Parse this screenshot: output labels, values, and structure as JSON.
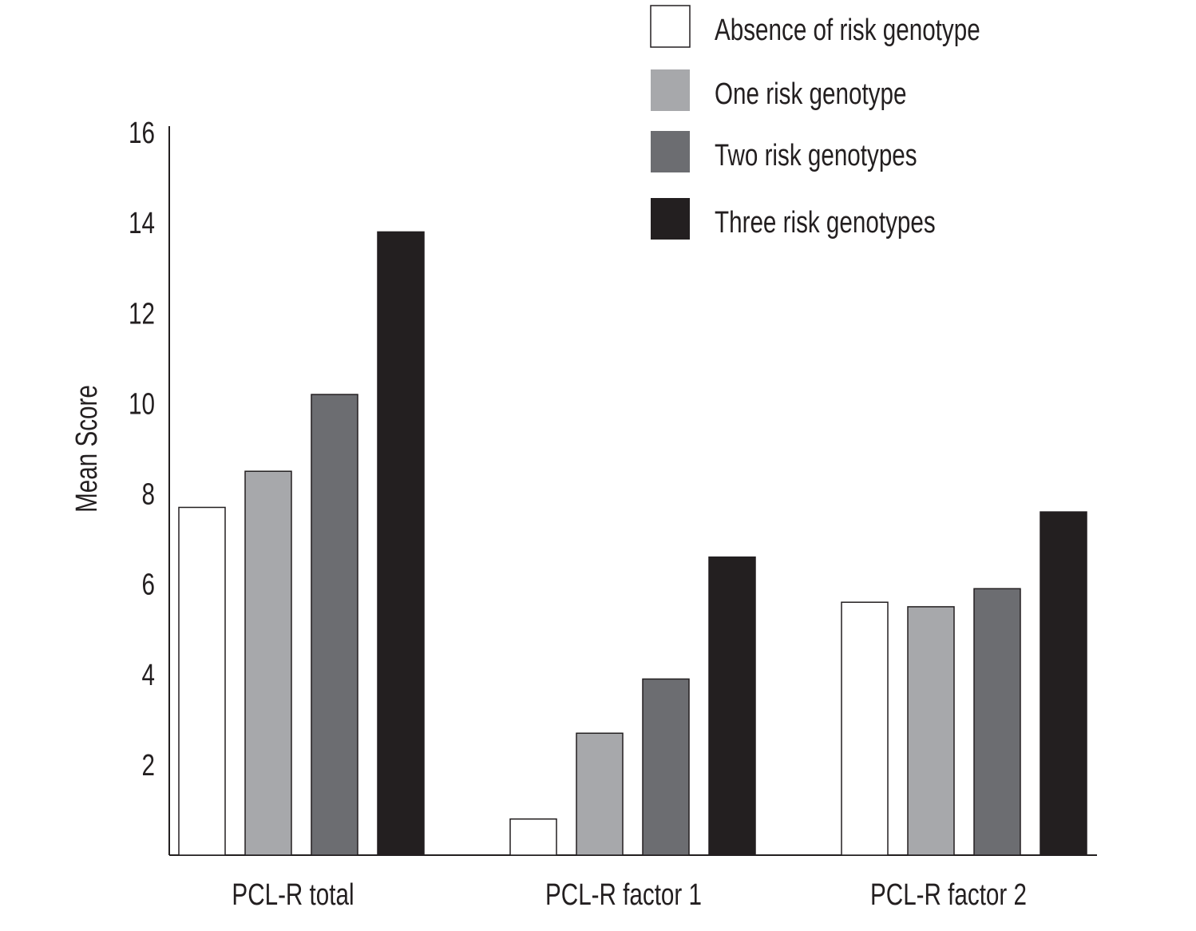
{
  "chart_data": {
    "type": "bar",
    "title": "",
    "xlabel": "",
    "ylabel": "Mean Score",
    "ylim": [
      0,
      16
    ],
    "yticks": [
      2,
      4,
      6,
      8,
      10,
      12,
      14,
      16
    ],
    "ytick_labels": [
      "2",
      "4",
      "6",
      "8",
      "10",
      "12",
      "14",
      "16"
    ],
    "categories": [
      "PCL-R total",
      "PCL-R factor 1",
      "PCL-R factor 2"
    ],
    "series": [
      {
        "name": "Absence of risk genotype",
        "color": "#ffffff",
        "values": [
          7.7,
          0.8,
          5.6
        ]
      },
      {
        "name": "One risk genotype",
        "color": "#a7a8ab",
        "values": [
          8.5,
          2.7,
          5.5
        ]
      },
      {
        "name": "Two risk genotypes",
        "color": "#6c6d71",
        "values": [
          10.2,
          3.9,
          5.9
        ]
      },
      {
        "name": "Three risk genotypes",
        "color": "#231f20",
        "values": [
          13.8,
          6.6,
          7.6
        ]
      }
    ],
    "legend_position": "top-right",
    "grid": false
  }
}
